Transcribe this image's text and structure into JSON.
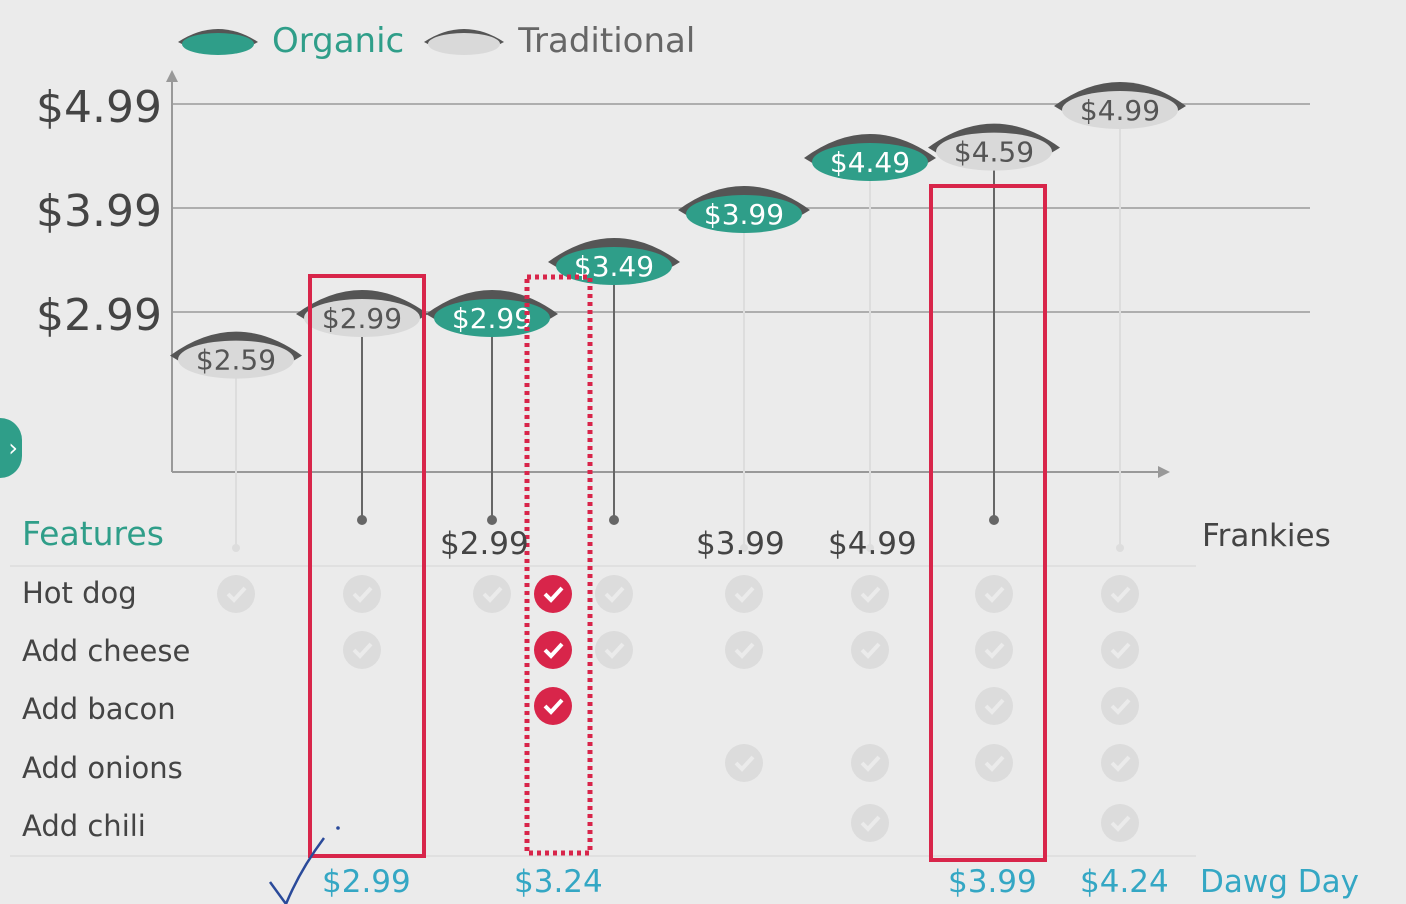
{
  "legend": {
    "organic_label": "Organic",
    "traditional_label": "Traditional",
    "organic_color": "#2f9e89",
    "traditional_color": "#d9d9d9"
  },
  "y_axis_labels": [
    "$4.99",
    "$3.99",
    "$2.99"
  ],
  "chart_data": {
    "type": "scatter",
    "ylim": [
      2.2,
      5.0
    ],
    "y_ticks": [
      2.99,
      3.99,
      4.99
    ],
    "y_tick_labels": [
      "$2.99",
      "$3.99",
      "$4.99"
    ],
    "points": [
      {
        "value": 2.59,
        "label": "$2.59",
        "kind": "traditional",
        "anchor": false
      },
      {
        "value": 2.99,
        "label": "$2.99",
        "kind": "traditional",
        "anchor": true
      },
      {
        "value": 2.99,
        "label": "$2.99",
        "kind": "organic",
        "anchor": true
      },
      {
        "value": 3.49,
        "label": "$3.49",
        "kind": "organic",
        "anchor": true
      },
      {
        "value": 3.99,
        "label": "$3.99",
        "kind": "organic",
        "anchor": false
      },
      {
        "value": 4.49,
        "label": "$4.49",
        "kind": "organic",
        "anchor": false
      },
      {
        "value": 4.59,
        "label": "$4.59",
        "kind": "traditional",
        "anchor": true
      },
      {
        "value": 4.99,
        "label": "$4.99",
        "kind": "traditional",
        "anchor": false
      }
    ]
  },
  "features": {
    "heading": "Features",
    "items": [
      "Hot dog",
      "Add cheese",
      "Add bacon",
      "Add onions",
      "Add chili"
    ]
  },
  "column_headers": [
    "",
    "",
    "$2.99",
    "",
    "$3.99",
    "$4.99",
    "",
    "",
    "Frankies"
  ],
  "checks": [
    [
      1,
      1,
      1,
      1,
      1,
      1,
      1,
      1
    ],
    [
      0,
      1,
      0,
      1,
      1,
      1,
      1,
      1
    ],
    [
      0,
      0,
      0,
      0,
      0,
      0,
      1,
      1
    ],
    [
      0,
      0,
      0,
      0,
      1,
      1,
      1,
      1
    ],
    [
      0,
      0,
      0,
      0,
      0,
      1,
      0,
      1
    ]
  ],
  "highlight_checks": {
    "rows": [
      0,
      1,
      2
    ]
  },
  "bottom_prices": [
    "$2.99",
    "$3.24",
    "$3.99",
    "$4.24",
    "Dawg Day"
  ],
  "colors": {
    "highlight": "#d8254a",
    "organic": "#2f9e89",
    "link": "#34a7c4"
  }
}
